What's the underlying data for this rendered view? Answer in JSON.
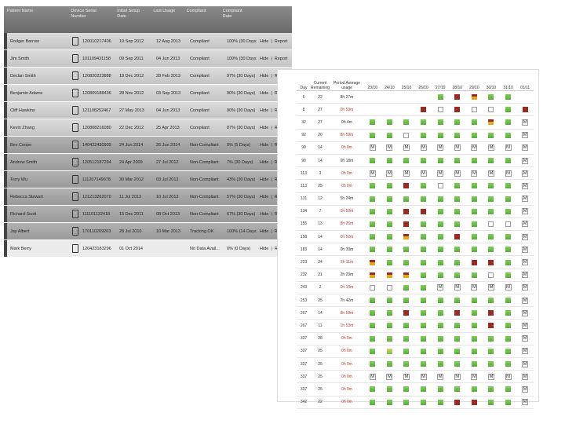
{
  "patients": {
    "columns": [
      "Patient Name",
      "Device Serial Number",
      "Initial Setup Date",
      "Last Usage",
      "Compliant",
      "Compliant Rate"
    ],
    "actions": [
      "Hide",
      "Report"
    ],
    "action_separator": "|",
    "rows": [
      {
        "name": "Rodger Barrow",
        "serial": "120010217406",
        "setup": "19 Sep 2012",
        "last": "12 Aug 2013",
        "status": "Compliant",
        "rate": "100% (30 Days)",
        "shade": "light"
      },
      {
        "name": "Jim Smith",
        "serial": "101109431158",
        "setup": "09 Sep 2011",
        "last": "04 Jun 2013",
        "status": "Compliant",
        "rate": "100% (30 Days)",
        "shade": "light"
      },
      {
        "name": "Declan Smith",
        "serial": "120820223888",
        "setup": "18 Dec 2012",
        "last": "28 Feb 2013",
        "status": "Compliant",
        "rate": "97% (30 Days)",
        "shade": "light"
      },
      {
        "name": "Benjamin Adams",
        "serial": "120809188436",
        "setup": "28 Nov 2012",
        "last": "03 Sep 2013",
        "status": "Compliant",
        "rate": "90% (30 Days)",
        "shade": "light"
      },
      {
        "name": "Cliff Hawkins",
        "serial": "121108252467",
        "setup": "27 May 2013",
        "last": "04 Jun 2013",
        "status": "Compliant",
        "rate": "90% (30 Days)",
        "shade": "light"
      },
      {
        "name": "Kevin Zhang",
        "serial": "120808216080",
        "setup": "22 Dec 2012",
        "last": "25 Apr 2013",
        "status": "Compliant",
        "rate": "87% (30 Days)",
        "shade": "light"
      },
      {
        "name": "Bev Coope",
        "serial": "140422430909",
        "setup": "24 Jun 2014",
        "last": "26 Jun 2014",
        "status": "Non-Compliant",
        "rate": "0% (5 Days)",
        "shade": "dark"
      },
      {
        "name": "Andrew Smith",
        "serial": "120512187294",
        "setup": "24 Apr 2009",
        "last": "27 Jul 2012",
        "status": "Non-Compliant",
        "rate": "7% (30 Days)",
        "shade": "dark"
      },
      {
        "name": "Terry Wu",
        "serial": "111207149678",
        "setup": "30 Mar 2012",
        "last": "03 Jul 2013",
        "status": "Non-Compliant",
        "rate": "43% (30 Days)",
        "shade": "dark"
      },
      {
        "name": "Rebecca Stewart",
        "serial": "121213262070",
        "setup": "11 Jul 2013",
        "last": "10 Jul 2013",
        "status": "Non-Compliant",
        "rate": "57% (30 Days)",
        "shade": "dark"
      },
      {
        "name": "Richard Scott",
        "serial": "111101132418",
        "setup": "15 Dec 2011",
        "last": "08 Oct 2013",
        "status": "Non-Compliant",
        "rate": "67% (30 Days)",
        "shade": "dark"
      },
      {
        "name": "Jay Albert",
        "serial": "170110209203",
        "setup": "28 Jul 2010",
        "last": "10 Mar 2013",
        "status": "Tracking OK",
        "rate": "100% (14 Days)",
        "shade": "dark"
      },
      {
        "name": "Mark Berry",
        "serial": "120423183296",
        "setup": "01 Oct 2014",
        "last": null,
        "status": "No Data Avail...",
        "rate": "0% (0 Days)",
        "shade": "plain"
      }
    ]
  },
  "usage": {
    "columns": [
      "Day",
      "Current Remaining",
      "Period Average usage"
    ],
    "dates": [
      "23/10",
      "24/10",
      "25/10",
      "26/10",
      "27/10",
      "28/10",
      "29/10",
      "30/10",
      "31/10",
      "01/11"
    ],
    "rows": [
      {
        "day": "6",
        "remaining": "22",
        "usage": "8h 27m",
        "alert": false,
        "cells": [
          null,
          null,
          null,
          null,
          "green",
          "red",
          "split",
          "green",
          "green",
          null
        ]
      },
      {
        "day": "8",
        "remaining": "27",
        "usage": "0h 53m",
        "alert": true,
        "cells": [
          null,
          null,
          null,
          "red",
          "empty",
          "red",
          "empty",
          "empty",
          "green",
          "red"
        ]
      },
      {
        "day": "32",
        "remaining": "27",
        "usage": "0h 4m",
        "alert": false,
        "cells": [
          "green",
          "green",
          "green",
          "green",
          "green",
          "green",
          "green",
          "split",
          "green",
          "M"
        ]
      },
      {
        "day": "92",
        "remaining": "20",
        "usage": "8h 59m",
        "alert": true,
        "cells": [
          "green",
          "green",
          "empty",
          "green",
          "green",
          "green",
          "green",
          "green",
          "green",
          "M"
        ]
      },
      {
        "day": "90",
        "remaining": "14",
        "usage": "0h 0m",
        "alert": true,
        "cells": [
          "M",
          "M",
          "M",
          "M",
          "M",
          "M",
          "M",
          "M",
          "M",
          "M"
        ]
      },
      {
        "day": "90",
        "remaining": "14",
        "usage": "0h 18m",
        "alert": false,
        "cells": [
          "green",
          "green",
          "green",
          "green",
          "green",
          "green",
          "green",
          "green",
          "green",
          "M"
        ]
      },
      {
        "day": "113",
        "remaining": "3",
        "usage": "0h 0m",
        "alert": true,
        "cells": [
          "M",
          "M",
          "M",
          "M",
          "M",
          "M",
          "M",
          "M",
          "M",
          "M"
        ]
      },
      {
        "day": "113",
        "remaining": "25",
        "usage": "0h 0m",
        "alert": true,
        "cells": [
          "green",
          "green",
          "red",
          "green",
          "empty",
          "green",
          "green",
          "green",
          "green",
          "M"
        ]
      },
      {
        "day": "131",
        "remaining": "12",
        "usage": "5h 24m",
        "alert": false,
        "cells": [
          "green",
          "green",
          "green",
          "green",
          "green",
          "green",
          "green",
          "green",
          "green",
          "M"
        ]
      },
      {
        "day": "134",
        "remaining": "7",
        "usage": "0h 53m",
        "alert": true,
        "cells": [
          "green",
          "green",
          "red",
          "red",
          "green",
          "green",
          "green",
          "green",
          "green",
          "M"
        ]
      },
      {
        "day": "155",
        "remaining": "13",
        "usage": "8h 26m",
        "alert": true,
        "cells": [
          "green",
          "green",
          "red",
          "green",
          "green",
          "green",
          "green",
          "empty",
          "empty",
          "M"
        ]
      },
      {
        "day": "158",
        "remaining": "14",
        "usage": "0h 52m",
        "alert": true,
        "cells": [
          "green",
          "green",
          "split",
          "green",
          "green",
          "red",
          "green",
          "green",
          "green",
          "M"
        ]
      },
      {
        "day": "183",
        "remaining": "14",
        "usage": "0h 33m",
        "alert": false,
        "cells": [
          "green",
          "green",
          "green",
          "green",
          "green",
          "green",
          "green",
          "green",
          "green",
          "M"
        ]
      },
      {
        "day": "223",
        "remaining": "24",
        "usage": "2h 11m",
        "alert": true,
        "cells": [
          "split",
          "green",
          "green",
          "green",
          "green",
          "green",
          "red",
          "red",
          "green",
          "M"
        ]
      },
      {
        "day": "232",
        "remaining": "21",
        "usage": "2h 23m",
        "alert": false,
        "cells": [
          "split",
          "split",
          "split",
          "green",
          "green",
          "green",
          "green",
          "empty",
          "green",
          "M"
        ]
      },
      {
        "day": "243",
        "remaining": "2",
        "usage": "0h 10m",
        "alert": true,
        "cells": [
          "empty",
          "empty",
          "green",
          "green",
          "M",
          "M",
          "M",
          "M",
          "M",
          "M"
        ]
      },
      {
        "day": "253",
        "remaining": "25",
        "usage": "7h 42m",
        "alert": false,
        "cells": [
          "green",
          "green",
          "green",
          "green",
          "green",
          "green",
          "green",
          "green",
          "green",
          "M"
        ]
      },
      {
        "day": "267",
        "remaining": "14",
        "usage": "8h 59m",
        "alert": true,
        "cells": [
          "green",
          "green",
          "red",
          "green",
          "green",
          "red",
          "green",
          "red",
          "green",
          "M"
        ]
      },
      {
        "day": "267",
        "remaining": "11",
        "usage": "1h 53m",
        "alert": true,
        "cells": [
          "green",
          "green",
          "green",
          "green",
          "green",
          "green",
          "green",
          "red",
          "green",
          "M"
        ]
      },
      {
        "day": "337",
        "remaining": "28",
        "usage": "0h 0m",
        "alert": true,
        "cells": [
          "green",
          "green",
          "green",
          "green",
          "green",
          "green",
          "green",
          "green",
          "green",
          "M"
        ]
      },
      {
        "day": "337",
        "remaining": "25",
        "usage": "0h 0m",
        "alert": true,
        "cells": [
          "green",
          "amber",
          "green",
          "green",
          "green",
          "green",
          "green",
          "green",
          "green",
          "M"
        ]
      },
      {
        "day": "337",
        "remaining": "25",
        "usage": "0h 0m",
        "alert": true,
        "cells": [
          "green",
          "green",
          "green",
          "green",
          "green",
          "green",
          "green",
          "green",
          "green",
          "M"
        ]
      },
      {
        "day": "337",
        "remaining": "25",
        "usage": "0h 0m",
        "alert": true,
        "cells": [
          "M",
          "M",
          "M",
          "M",
          "M",
          "M",
          "M",
          "M",
          "M",
          "M"
        ]
      },
      {
        "day": "337",
        "remaining": "25",
        "usage": "0h 0m",
        "alert": true,
        "cells": [
          "green",
          "green",
          "green",
          "green",
          "green",
          "green",
          "green",
          "green",
          "green",
          "M"
        ]
      },
      {
        "day": "342",
        "remaining": "22",
        "usage": "0h 0m",
        "alert": true,
        "cells": [
          "green",
          "green",
          "green",
          "green",
          "green",
          "red",
          "red",
          "green",
          "green",
          "M"
        ]
      }
    ]
  }
}
